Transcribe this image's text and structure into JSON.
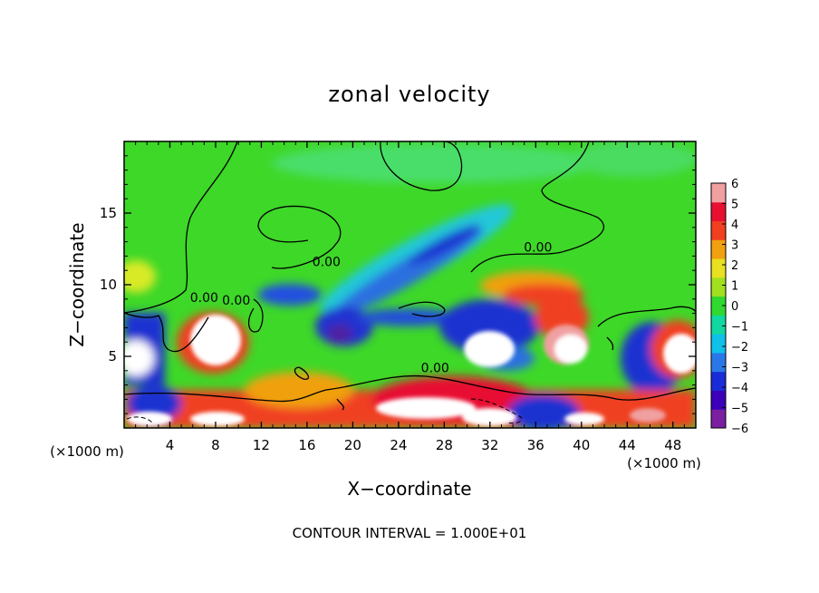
{
  "chart_data": {
    "type": "heatmap",
    "title": "zonal velocity",
    "xlabel": "X−coordinate",
    "ylabel": "Z−coordinate",
    "x_unit_left": "(×1000 m)",
    "x_unit_right": "(×1000 m)",
    "xlim": [
      0,
      50
    ],
    "ylim": [
      0,
      20
    ],
    "xticks": [
      4,
      8,
      12,
      16,
      20,
      24,
      28,
      32,
      36,
      40,
      44,
      48
    ],
    "yticks": [
      5,
      10,
      15
    ],
    "colorbar": {
      "min": -6,
      "max": 6,
      "ticks": [
        6,
        5,
        4,
        3,
        2,
        1,
        0,
        -1,
        -2,
        -3,
        -4,
        -5,
        -6
      ],
      "tick_labels": [
        "6",
        "5",
        "4",
        "3",
        "2",
        "1",
        "0",
        "−1",
        "−2",
        "−3",
        "−4",
        "−5",
        "−6"
      ],
      "colors": [
        "#7a1fa0",
        "#3b00b8",
        "#1a2bd8",
        "#2a78e8",
        "#10c0e8",
        "#10d8a0",
        "#30d830",
        "#a0e020",
        "#e8e020",
        "#f0a010",
        "#f04020",
        "#e81030",
        "#f0a0a0"
      ]
    },
    "contour_labels": [
      {
        "text": "0.00",
        "x": 7.0,
        "z": 8.8
      },
      {
        "text": "0.00",
        "x": 9.8,
        "z": 8.6
      },
      {
        "text": "0.00",
        "x": 17.7,
        "z": 11.3
      },
      {
        "text": "0.00",
        "x": 36.2,
        "z": 12.3
      },
      {
        "text": "0.00",
        "x": 27.2,
        "z": 3.9
      }
    ],
    "grid": false,
    "legend": "colorbar right"
  },
  "footer": {
    "contour_interval": "CONTOUR INTERVAL = 1.000E+01"
  }
}
